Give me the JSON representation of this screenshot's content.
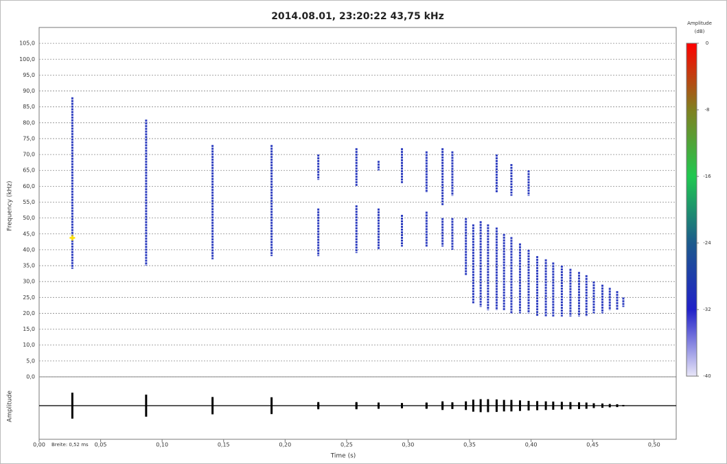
{
  "chart_data": {
    "type": "spectrogram",
    "title": "2014.08.01, 23:20:22 43,75 kHz",
    "ylabel": "Frequency (kHz)",
    "xlabel": "Time (s)",
    "amplitude_label": "Amplitude",
    "annotation": "Breite: 0,52 ms",
    "xlim": [
      0,
      0.518
    ],
    "ylim": [
      0,
      110
    ],
    "xticks": [
      {
        "value": 0,
        "label": "0,00"
      },
      {
        "value": 0.05,
        "label": "0,05"
      },
      {
        "value": 0.1,
        "label": "0,10"
      },
      {
        "value": 0.15,
        "label": "0,15"
      },
      {
        "value": 0.2,
        "label": "0,20"
      },
      {
        "value": 0.25,
        "label": "0,25"
      },
      {
        "value": 0.3,
        "label": "0,30"
      },
      {
        "value": 0.35,
        "label": "0,35"
      },
      {
        "value": 0.4,
        "label": "0,40"
      },
      {
        "value": 0.45,
        "label": "0,45"
      },
      {
        "value": 0.5,
        "label": "0,50"
      }
    ],
    "yticks": [
      {
        "value": 0,
        "label": "0,0"
      },
      {
        "value": 5,
        "label": "5,0"
      },
      {
        "value": 10,
        "label": "10,0"
      },
      {
        "value": 15,
        "label": "15,0"
      },
      {
        "value": 20,
        "label": "20,0"
      },
      {
        "value": 25,
        "label": "25,0"
      },
      {
        "value": 30,
        "label": "30,0"
      },
      {
        "value": 35,
        "label": "35,0"
      },
      {
        "value": 40,
        "label": "40,0"
      },
      {
        "value": 45,
        "label": "45,0"
      },
      {
        "value": 50,
        "label": "50,0"
      },
      {
        "value": 55,
        "label": "55,0"
      },
      {
        "value": 60,
        "label": "60,0"
      },
      {
        "value": 65,
        "label": "65,0"
      },
      {
        "value": 70,
        "label": "70,0"
      },
      {
        "value": 75,
        "label": "75,0"
      },
      {
        "value": 80,
        "label": "80,0"
      },
      {
        "value": 85,
        "label": "85,0"
      },
      {
        "value": 90,
        "label": "90,0"
      },
      {
        "value": 95,
        "label": "95,0"
      },
      {
        "value": 100,
        "label": "100,0"
      },
      {
        "value": 105,
        "label": "105,0"
      }
    ],
    "grid": true,
    "color": "#2f3fc0",
    "x": [
      0.027,
      0.087,
      0.141,
      0.189,
      0.227,
      0.227,
      0.258,
      0.258,
      0.276,
      0.276,
      0.295,
      0.295,
      0.315,
      0.315,
      0.328,
      0.328,
      0.336,
      0.336,
      0.347,
      0.353,
      0.359,
      0.365,
      0.372,
      0.372,
      0.378,
      0.384,
      0.384,
      0.391,
      0.398,
      0.398,
      0.405,
      0.412,
      0.418,
      0.425,
      0.432,
      0.439,
      0.445,
      0.451,
      0.458,
      0.464,
      0.47,
      0.475
    ],
    "low": [
      34,
      35,
      37,
      38,
      38,
      62,
      39,
      60,
      40,
      65,
      41,
      61,
      41,
      58,
      41,
      54,
      40,
      57,
      32,
      23,
      22,
      21,
      21,
      58,
      21,
      20,
      57,
      20,
      20,
      57,
      19,
      19,
      19,
      19,
      19,
      19,
      19,
      20,
      20,
      21,
      21,
      22
    ],
    "high": [
      88,
      81,
      73,
      73,
      53,
      70,
      54,
      72,
      53,
      68,
      51,
      72,
      52,
      71,
      50,
      72,
      50,
      71,
      50,
      48,
      49,
      48,
      47,
      70,
      45,
      44,
      67,
      42,
      40,
      65,
      38,
      37,
      36,
      35,
      34,
      33,
      32,
      30,
      29,
      28,
      27,
      25
    ],
    "cursor": {
      "x": 0.027,
      "y": 43.75,
      "color": "#ffe000"
    },
    "colorbar": {
      "label": [
        "Amplitude",
        "(dB)"
      ],
      "lim": [
        -40,
        0
      ],
      "ticks": [
        0,
        -8,
        -16,
        -24,
        -32,
        -40
      ],
      "colors": [
        "#e8e6f8",
        "#2020c8",
        "#1c5a8c",
        "#20c850",
        "#808020",
        "#ff0000"
      ]
    }
  }
}
